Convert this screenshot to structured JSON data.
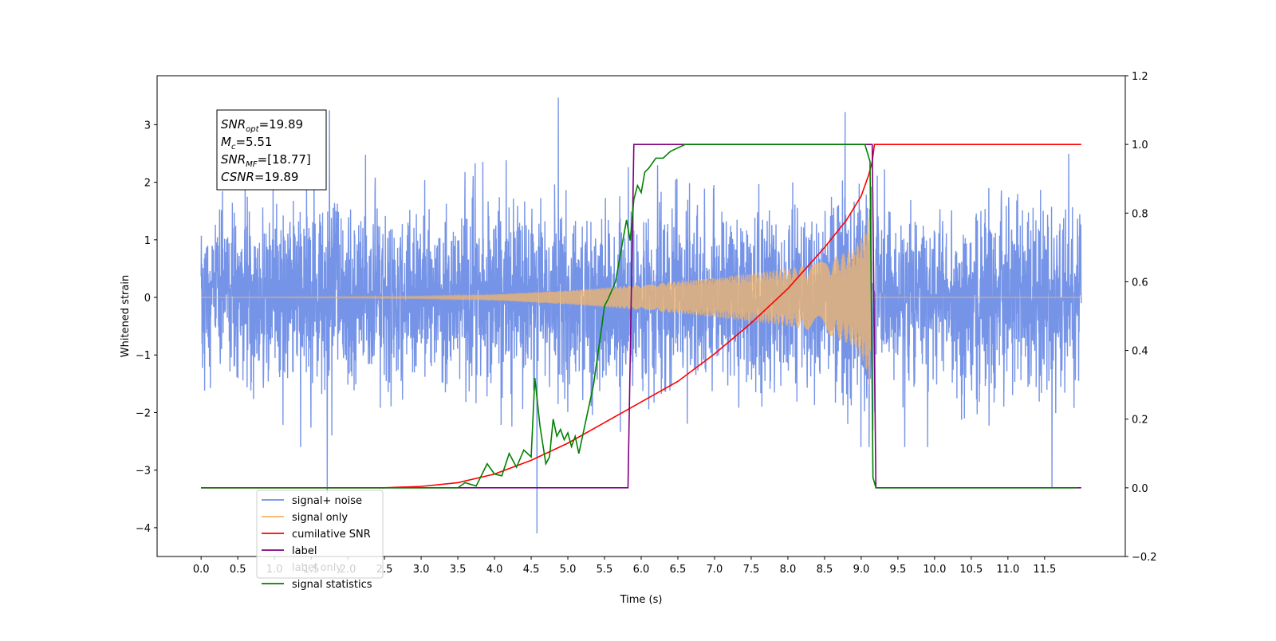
{
  "chart_data": {
    "type": "line",
    "title": "",
    "xlabel": "Time (s)",
    "ylabel": "Whitened strain",
    "y2label": "",
    "xlim": [
      -0.6,
      12.6
    ],
    "ylim": [
      -4.5,
      3.85
    ],
    "y2lim": [
      -0.2,
      1.2
    ],
    "x_ticks": [
      "0.0",
      "0.5",
      "1.0",
      "1.5",
      "2.0",
      "2.5",
      "3.0",
      "3.5",
      "4.0",
      "4.5",
      "5.0",
      "5.5",
      "6.0",
      "6.5",
      "7.0",
      "7.5",
      "8.0",
      "8.5",
      "9.0",
      "9.5",
      "10.0",
      "10.5",
      "11.0",
      "11.5"
    ],
    "y_ticks": [
      "−4",
      "−3",
      "−2",
      "−1",
      "0",
      "1",
      "2",
      "3"
    ],
    "y2_ticks": [
      "−0.2",
      "0.0",
      "0.2",
      "0.4",
      "0.6",
      "0.8",
      "1.0",
      "1.2"
    ],
    "grid": false,
    "legend_position": "lower-left",
    "annotation": {
      "snr_opt": "19.89",
      "m_c": "5.51",
      "snr_mf": "[18.77]",
      "csnr": "19.89"
    },
    "series": [
      {
        "name": "signal+ noise",
        "axis": "left",
        "color": "#6f8ee6",
        "description": "white noise std ~0.75 plus chirp, 0 to 12 s",
        "x_range": [
          0.0,
          12.0
        ],
        "noise_std": 0.75,
        "spike_points": [
          [
            1.75,
            3.25
          ],
          [
            1.72,
            -3.4
          ],
          [
            4.58,
            -4.1
          ],
          [
            4.87,
            3.47
          ],
          [
            8.78,
            3.22
          ],
          [
            11.6,
            -3.3
          ]
        ]
      },
      {
        "name": "signal only",
        "axis": "left",
        "color": "#f4b56a",
        "envelope": [
          [
            0.0,
            0.0
          ],
          [
            3.0,
            0.02
          ],
          [
            4.0,
            0.05
          ],
          [
            5.0,
            0.12
          ],
          [
            6.0,
            0.22
          ],
          [
            7.0,
            0.34
          ],
          [
            8.0,
            0.5
          ],
          [
            8.5,
            0.62
          ],
          [
            8.9,
            0.85
          ],
          [
            9.05,
            1.15
          ],
          [
            9.12,
            1.6
          ],
          [
            9.15,
            0.0
          ],
          [
            12.0,
            0.0
          ]
        ]
      },
      {
        "name": "cumilative SNR",
        "axis": "right",
        "color": "#ff0000",
        "x": [
          0.0,
          2.5,
          3.0,
          3.5,
          4.0,
          4.5,
          5.0,
          5.5,
          6.0,
          6.5,
          7.0,
          7.5,
          8.0,
          8.5,
          8.8,
          9.0,
          9.1,
          9.15,
          9.18,
          9.2,
          12.0
        ],
        "y": [
          0.0,
          0.0,
          0.004,
          0.015,
          0.04,
          0.08,
          0.13,
          0.19,
          0.25,
          0.31,
          0.39,
          0.48,
          0.58,
          0.7,
          0.78,
          0.85,
          0.91,
          0.95,
          1.0,
          1.0,
          1.0
        ]
      },
      {
        "name": "label",
        "axis": "right",
        "color": "#800080",
        "x": [
          0.0,
          5.82,
          5.9,
          9.15,
          9.2,
          12.0
        ],
        "y": [
          0.0,
          0.0,
          1.0,
          1.0,
          0.0,
          0.0
        ]
      },
      {
        "name": "label only",
        "axis": "right",
        "color": "",
        "hidden": true
      },
      {
        "name": "signal statistics",
        "axis": "right",
        "color": "#008000",
        "x": [
          0.0,
          3.5,
          3.6,
          3.75,
          3.9,
          4.0,
          4.1,
          4.2,
          4.3,
          4.4,
          4.5,
          4.55,
          4.62,
          4.7,
          4.75,
          4.8,
          4.85,
          4.9,
          4.95,
          5.0,
          5.05,
          5.1,
          5.15,
          5.2,
          5.25,
          5.35,
          5.45,
          5.5,
          5.55,
          5.65,
          5.75,
          5.8,
          5.85,
          5.9,
          5.95,
          6.0,
          6.05,
          6.1,
          6.2,
          6.3,
          6.4,
          6.5,
          6.6,
          6.7,
          6.8,
          7.0,
          9.05,
          9.12,
          9.16,
          9.2,
          9.25,
          11.95
        ],
        "y": [
          0.0,
          0.0,
          0.015,
          0.005,
          0.07,
          0.04,
          0.035,
          0.1,
          0.06,
          0.11,
          0.09,
          0.32,
          0.18,
          0.07,
          0.09,
          0.2,
          0.15,
          0.17,
          0.14,
          0.16,
          0.12,
          0.15,
          0.1,
          0.15,
          0.2,
          0.3,
          0.45,
          0.53,
          0.55,
          0.6,
          0.72,
          0.78,
          0.72,
          0.84,
          0.88,
          0.86,
          0.92,
          0.93,
          0.96,
          0.96,
          0.98,
          0.99,
          1.0,
          1.0,
          1.0,
          1.0,
          1.0,
          0.95,
          0.03,
          0.0,
          0.0,
          0.0
        ]
      }
    ]
  }
}
